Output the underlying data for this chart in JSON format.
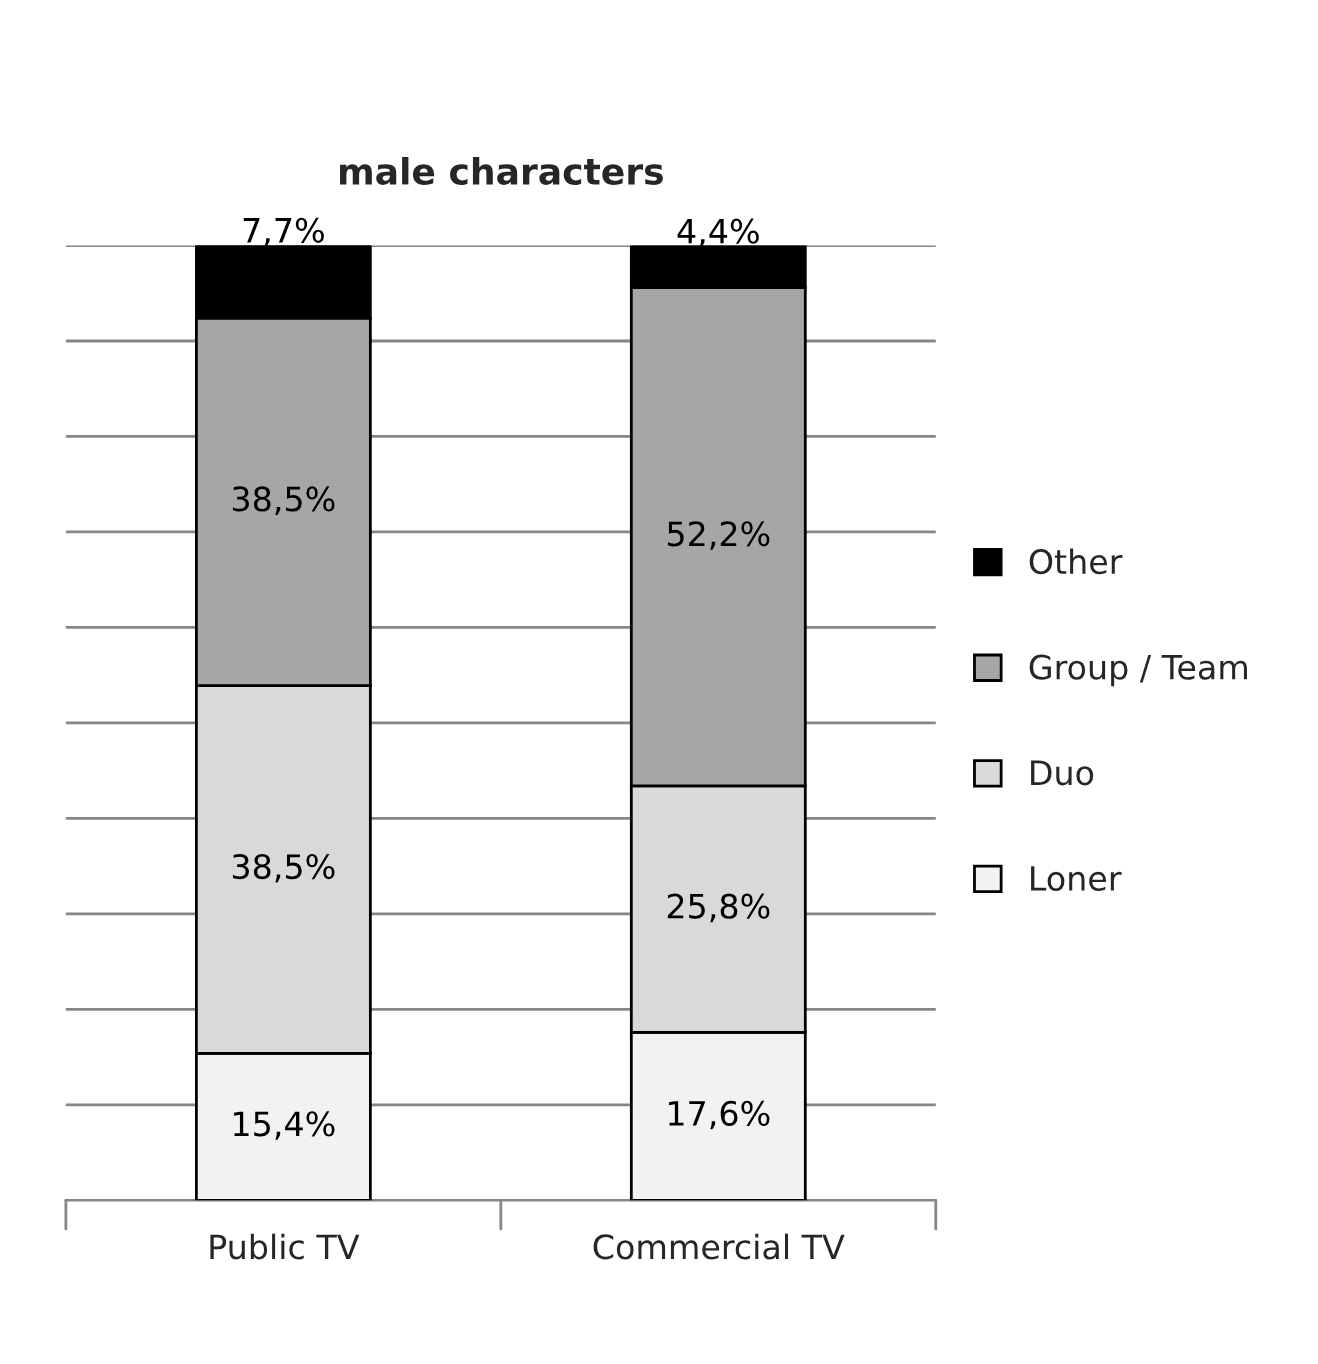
{
  "chart_data": {
    "type": "bar",
    "title": "male characters",
    "stacked": true,
    "categories": [
      "Public TV",
      "Commercial TV"
    ],
    "series": [
      {
        "name": "Loner",
        "color": "#f2f2f2",
        "values": [
          15.4,
          17.6
        ],
        "value_labels": [
          "15,4%",
          "17,6%"
        ]
      },
      {
        "name": "Duo",
        "color": "#d9d9d9",
        "values": [
          38.5,
          25.8
        ],
        "value_labels": [
          "38,5%",
          "25,8%"
        ]
      },
      {
        "name": "Group / Team",
        "color": "#a6a6a6",
        "values": [
          38.5,
          52.2
        ],
        "value_labels": [
          "38,5%",
          "52,2%"
        ]
      },
      {
        "name": "Other",
        "color": "#000000",
        "values": [
          7.7,
          4.4
        ],
        "value_labels": [
          "7,7%",
          "4,4%"
        ]
      }
    ],
    "ylim": [
      0,
      100
    ],
    "yticks": [
      {
        "value": 0,
        "label": null
      },
      {
        "value": 10,
        "label": null
      },
      {
        "value": 20,
        "label": null
      },
      {
        "value": 30,
        "label": null
      },
      {
        "value": 40,
        "label": null
      },
      {
        "value": 50,
        "label": null
      },
      {
        "value": 60,
        "label": null
      },
      {
        "value": 70,
        "label": null
      },
      {
        "value": 80,
        "label": null
      },
      {
        "value": 90,
        "label": null
      },
      {
        "value": 100,
        "label": null
      }
    ],
    "tick_labels": "x",
    "grid": "y",
    "legend": "right"
  }
}
